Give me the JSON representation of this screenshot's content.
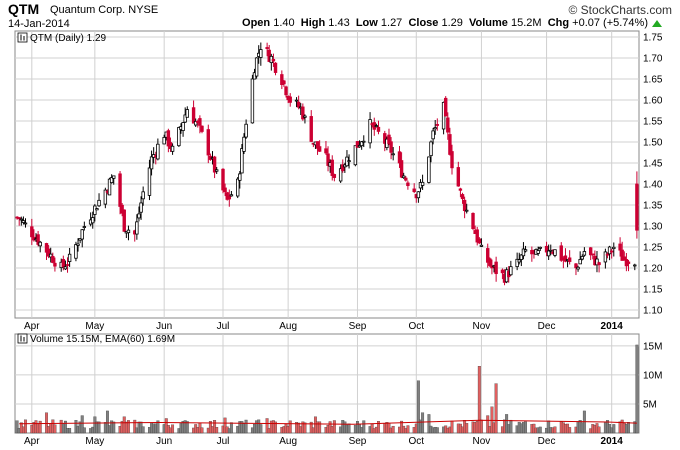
{
  "header": {
    "symbol": "QTM",
    "company": "Quantum Corp.",
    "exchange": "NYSE",
    "date": "14-Jan-2014",
    "brand": "© StockCharts.com",
    "open_label": "Open",
    "open": "1.40",
    "high_label": "High",
    "high": "1.43",
    "low_label": "Low",
    "low": "1.27",
    "close_label": "Close",
    "close": "1.29",
    "volume_label": "Volume",
    "volume": "15.2M",
    "chg_label": "Chg",
    "chg": "+0.07 (+5.74%)",
    "chg_icon": "up-triangle-icon",
    "chg_color": "#22aa22"
  },
  "price_legend": "QTM (Daily) 1.29",
  "volume_legend": "Volume 15.15M, EMA(60) 1.69M",
  "colors": {
    "up": "#000000",
    "down": "#cc0033",
    "vol_down": "#e06060",
    "vol_up": "#808080",
    "ema": "#cc0000",
    "grid": "#d0d0d0"
  },
  "chart_data": [
    {
      "type": "candlestick",
      "title": "QTM (Daily) 1.29",
      "ylim": [
        1.1,
        1.75
      ],
      "y_ticks": [
        "1.10",
        "1.15",
        "1.20",
        "1.25",
        "1.30",
        "1.35",
        "1.40",
        "1.45",
        "1.50",
        "1.55",
        "1.60",
        "1.65",
        "1.70",
        "1.75"
      ],
      "x_ticks": [
        "Apr",
        "May",
        "Jun",
        "Jul",
        "Aug",
        "Sep",
        "Oct",
        "Nov",
        "Dec",
        "2014"
      ],
      "grid": true,
      "close_path": {
        "x": [
          "2013-03-26",
          "2013-04-05",
          "2013-04-15",
          "2013-04-19",
          "2013-04-26",
          "2013-05-03",
          "2013-05-10",
          "2013-05-15",
          "2013-05-20",
          "2013-05-24",
          "2013-05-28",
          "2013-06-03",
          "2013-06-07",
          "2013-06-14",
          "2013-06-19",
          "2013-06-24",
          "2013-06-28",
          "2013-07-03",
          "2013-07-08",
          "2013-07-12",
          "2013-07-16",
          "2013-07-19",
          "2013-07-24",
          "2013-07-29",
          "2013-08-02",
          "2013-08-07",
          "2013-08-13",
          "2013-08-19",
          "2013-08-23",
          "2013-08-29",
          "2013-09-04",
          "2013-09-09",
          "2013-09-13",
          "2013-09-19",
          "2013-09-25",
          "2013-10-01",
          "2013-10-04",
          "2013-10-09",
          "2013-10-14",
          "2013-10-18",
          "2013-10-23",
          "2013-10-28",
          "2013-11-01",
          "2013-11-06",
          "2013-11-12",
          "2013-11-18",
          "2013-11-22",
          "2013-11-27",
          "2013-12-04",
          "2013-12-10",
          "2013-12-16",
          "2013-12-20",
          "2013-12-27",
          "2014-01-03",
          "2014-01-08",
          "2014-01-13",
          "2014-01-14"
        ],
        "y": [
          1.32,
          1.26,
          1.2,
          1.22,
          1.3,
          1.36,
          1.42,
          1.3,
          1.28,
          1.38,
          1.46,
          1.52,
          1.48,
          1.58,
          1.54,
          1.48,
          1.42,
          1.36,
          1.4,
          1.55,
          1.68,
          1.73,
          1.7,
          1.65,
          1.6,
          1.58,
          1.5,
          1.46,
          1.42,
          1.46,
          1.5,
          1.54,
          1.52,
          1.48,
          1.42,
          1.38,
          1.4,
          1.52,
          1.58,
          1.45,
          1.36,
          1.3,
          1.24,
          1.2,
          1.18,
          1.21,
          1.24,
          1.23,
          1.25,
          1.22,
          1.2,
          1.24,
          1.21,
          1.25,
          1.22,
          1.22,
          1.29
        ]
      }
    },
    {
      "type": "bar",
      "title": "Volume 15.15M, EMA(60) 1.69M",
      "ylim": [
        0,
        16
      ],
      "y_ticks": [
        "5M",
        "10M",
        "15M"
      ],
      "x_ticks": [
        "Apr",
        "May",
        "Jun",
        "Jul",
        "Aug",
        "Sep",
        "Oct",
        "Nov",
        "Dec",
        "2014"
      ],
      "typical_volume_m": 1.7,
      "spikes": [
        {
          "x": "2013-04-08",
          "value": 3.5
        },
        {
          "x": "2013-04-25",
          "value": 3.0
        },
        {
          "x": "2013-05-01",
          "value": 2.8
        },
        {
          "x": "2013-05-07",
          "value": 3.8
        },
        {
          "x": "2013-05-15",
          "value": 2.8
        },
        {
          "x": "2013-06-04",
          "value": 2.5
        },
        {
          "x": "2013-07-02",
          "value": 2.6
        },
        {
          "x": "2013-07-22",
          "value": 2.5
        },
        {
          "x": "2013-08-14",
          "value": 2.8
        },
        {
          "x": "2013-10-02",
          "value": 9.0
        },
        {
          "x": "2013-10-04",
          "value": 3.5
        },
        {
          "x": "2013-10-07",
          "value": 3.2
        },
        {
          "x": "2013-10-31",
          "value": 11.5
        },
        {
          "x": "2013-11-04",
          "value": 3.0
        },
        {
          "x": "2013-11-06",
          "value": 4.5
        },
        {
          "x": "2013-11-08",
          "value": 8.5
        },
        {
          "x": "2013-11-13",
          "value": 3.2
        },
        {
          "x": "2013-12-20",
          "value": 3.8
        },
        {
          "x": "2014-01-14",
          "value": 15.15
        }
      ],
      "ema60": {
        "x": [
          "2013-03-26",
          "2013-06-01",
          "2013-09-01",
          "2013-10-31",
          "2013-12-31",
          "2014-01-14"
        ],
        "y": [
          1.6,
          1.8,
          1.5,
          2.2,
          1.9,
          1.69
        ]
      }
    }
  ]
}
